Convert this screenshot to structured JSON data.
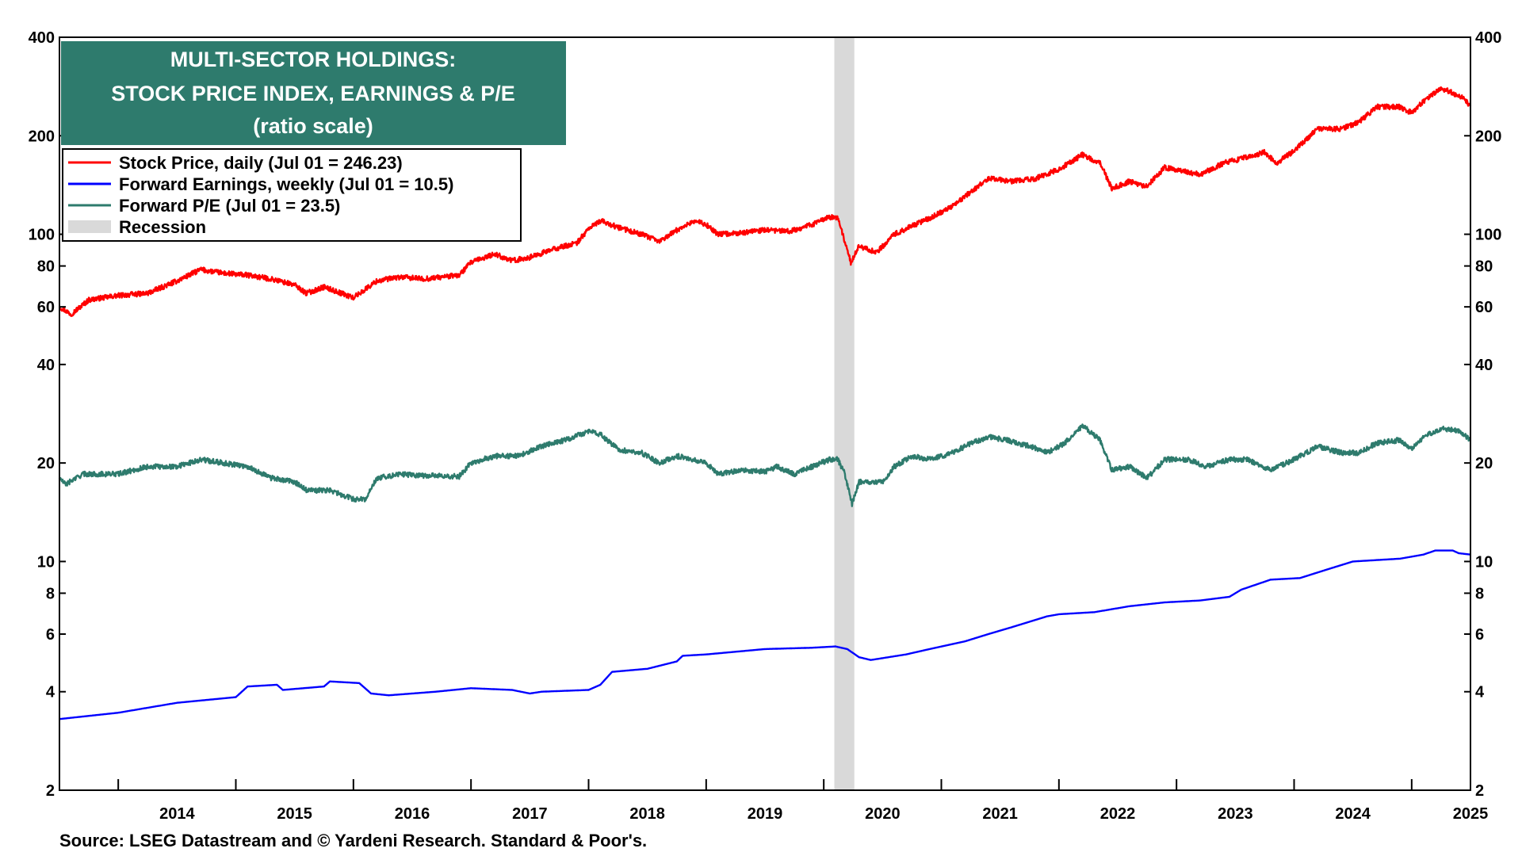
{
  "chart_data": {
    "type": "line",
    "title": [
      "MULTI-SECTOR HOLDINGS:",
      "STOCK PRICE INDEX, EARNINGS & P/E",
      "(ratio scale)"
    ],
    "y_scale": "log",
    "ylim": [
      2,
      400
    ],
    "y_ticks": [
      {
        "value": 2,
        "label": "2"
      },
      {
        "value": 4,
        "label": "4"
      },
      {
        "value": 6,
        "label": "6"
      },
      {
        "value": 8,
        "label": "8"
      },
      {
        "value": 10,
        "label": "10"
      },
      {
        "value": 20,
        "label": "20"
      },
      {
        "value": 40,
        "label": "40"
      },
      {
        "value": 60,
        "label": "60"
      },
      {
        "value": 80,
        "label": "80"
      },
      {
        "value": 100,
        "label": "100"
      },
      {
        "value": 200,
        "label": "200"
      },
      {
        "value": 400,
        "label": "400"
      }
    ],
    "x_range": [
      2013.5,
      2025.5
    ],
    "x_ticks": [
      "2014",
      "2015",
      "2016",
      "2017",
      "2018",
      "2019",
      "2020",
      "2021",
      "2022",
      "2023",
      "2024",
      "2025"
    ],
    "legend_position": "top-left",
    "recession": {
      "start": 2020.09,
      "end": 2020.26,
      "color": "#d9d9d9"
    },
    "series": [
      {
        "name": "Stock Price, daily (Jul 01 = 246.23)",
        "color": "#ff0000",
        "points": [
          [
            2013.5,
            60
          ],
          [
            2013.6,
            57
          ],
          [
            2013.75,
            63
          ],
          [
            2014.0,
            65
          ],
          [
            2014.25,
            66
          ],
          [
            2014.5,
            72
          ],
          [
            2014.7,
            78
          ],
          [
            2014.9,
            76
          ],
          [
            2015.1,
            75
          ],
          [
            2015.3,
            73
          ],
          [
            2015.5,
            70
          ],
          [
            2015.6,
            66
          ],
          [
            2015.75,
            69
          ],
          [
            2016.0,
            64
          ],
          [
            2016.2,
            72
          ],
          [
            2016.4,
            74
          ],
          [
            2016.6,
            73
          ],
          [
            2016.9,
            75
          ],
          [
            2017.0,
            82
          ],
          [
            2017.2,
            87
          ],
          [
            2017.35,
            83
          ],
          [
            2017.5,
            85
          ],
          [
            2017.7,
            90
          ],
          [
            2017.9,
            94
          ],
          [
            2018.0,
            104
          ],
          [
            2018.1,
            110
          ],
          [
            2018.25,
            105
          ],
          [
            2018.45,
            100
          ],
          [
            2018.6,
            95
          ],
          [
            2018.75,
            103
          ],
          [
            2018.9,
            110
          ],
          [
            2019.0,
            107
          ],
          [
            2019.1,
            100
          ],
          [
            2019.3,
            101
          ],
          [
            2019.5,
            103
          ],
          [
            2019.7,
            102
          ],
          [
            2019.9,
            107
          ],
          [
            2020.05,
            113
          ],
          [
            2020.12,
            112
          ],
          [
            2020.18,
            95
          ],
          [
            2020.23,
            82
          ],
          [
            2020.3,
            92
          ],
          [
            2020.45,
            88
          ],
          [
            2020.6,
            100
          ],
          [
            2020.75,
            106
          ],
          [
            2020.9,
            112
          ],
          [
            2021.1,
            122
          ],
          [
            2021.25,
            135
          ],
          [
            2021.4,
            148
          ],
          [
            2021.6,
            145
          ],
          [
            2021.8,
            148
          ],
          [
            2022.0,
            158
          ],
          [
            2022.2,
            175
          ],
          [
            2022.35,
            165
          ],
          [
            2022.45,
            138
          ],
          [
            2022.6,
            145
          ],
          [
            2022.75,
            140
          ],
          [
            2022.9,
            160
          ],
          [
            2023.1,
            155
          ],
          [
            2023.2,
            152
          ],
          [
            2023.4,
            165
          ],
          [
            2023.6,
            172
          ],
          [
            2023.75,
            178
          ],
          [
            2023.85,
            165
          ],
          [
            2024.0,
            180
          ],
          [
            2024.2,
            210
          ],
          [
            2024.4,
            210
          ],
          [
            2024.55,
            220
          ],
          [
            2024.7,
            245
          ],
          [
            2024.9,
            245
          ],
          [
            2025.0,
            235
          ],
          [
            2025.1,
            255
          ],
          [
            2025.25,
            280
          ],
          [
            2025.35,
            270
          ],
          [
            2025.45,
            260
          ],
          [
            2025.5,
            246
          ]
        ]
      },
      {
        "name": "Forward Earnings, weekly (Jul 01 = 10.5)",
        "color": "#0000ff",
        "points": [
          [
            2013.5,
            3.3
          ],
          [
            2014.0,
            3.45
          ],
          [
            2014.5,
            3.7
          ],
          [
            2015.0,
            3.85
          ],
          [
            2015.1,
            4.15
          ],
          [
            2015.35,
            4.2
          ],
          [
            2015.4,
            4.05
          ],
          [
            2015.75,
            4.15
          ],
          [
            2015.8,
            4.3
          ],
          [
            2016.05,
            4.25
          ],
          [
            2016.15,
            3.95
          ],
          [
            2016.3,
            3.9
          ],
          [
            2016.7,
            4.0
          ],
          [
            2017.0,
            4.1
          ],
          [
            2017.35,
            4.05
          ],
          [
            2017.5,
            3.95
          ],
          [
            2017.6,
            4.0
          ],
          [
            2018.0,
            4.05
          ],
          [
            2018.1,
            4.2
          ],
          [
            2018.2,
            4.6
          ],
          [
            2018.5,
            4.7
          ],
          [
            2018.75,
            4.95
          ],
          [
            2018.8,
            5.15
          ],
          [
            2019.0,
            5.2
          ],
          [
            2019.5,
            5.4
          ],
          [
            2019.9,
            5.45
          ],
          [
            2020.1,
            5.5
          ],
          [
            2020.2,
            5.4
          ],
          [
            2020.3,
            5.1
          ],
          [
            2020.4,
            5.0
          ],
          [
            2020.7,
            5.2
          ],
          [
            2020.9,
            5.4
          ],
          [
            2021.2,
            5.7
          ],
          [
            2021.4,
            6.0
          ],
          [
            2021.6,
            6.3
          ],
          [
            2021.9,
            6.8
          ],
          [
            2022.0,
            6.9
          ],
          [
            2022.3,
            7.0
          ],
          [
            2022.6,
            7.3
          ],
          [
            2022.9,
            7.5
          ],
          [
            2023.2,
            7.6
          ],
          [
            2023.45,
            7.8
          ],
          [
            2023.55,
            8.2
          ],
          [
            2023.8,
            8.8
          ],
          [
            2024.05,
            8.9
          ],
          [
            2024.3,
            9.5
          ],
          [
            2024.5,
            10.0
          ],
          [
            2024.9,
            10.2
          ],
          [
            2025.1,
            10.5
          ],
          [
            2025.2,
            10.8
          ],
          [
            2025.35,
            10.8
          ],
          [
            2025.4,
            10.6
          ],
          [
            2025.5,
            10.5
          ]
        ]
      },
      {
        "name": "Forward P/E (Jul 01 = 23.5)",
        "color": "#2e7b6d",
        "points": [
          [
            2013.5,
            18
          ],
          [
            2013.55,
            17.2
          ],
          [
            2013.7,
            18.5
          ],
          [
            2014.0,
            18.5
          ],
          [
            2014.25,
            19.5
          ],
          [
            2014.5,
            19.5
          ],
          [
            2014.7,
            20.5
          ],
          [
            2014.9,
            20
          ],
          [
            2015.1,
            19.5
          ],
          [
            2015.3,
            18
          ],
          [
            2015.5,
            17.5
          ],
          [
            2015.6,
            16.5
          ],
          [
            2015.8,
            16.5
          ],
          [
            2016.0,
            15.5
          ],
          [
            2016.1,
            15.5
          ],
          [
            2016.2,
            18
          ],
          [
            2016.4,
            18.5
          ],
          [
            2016.6,
            18.3
          ],
          [
            2016.9,
            18.2
          ],
          [
            2017.0,
            20
          ],
          [
            2017.2,
            21
          ],
          [
            2017.4,
            21
          ],
          [
            2017.6,
            22.5
          ],
          [
            2017.8,
            23.5
          ],
          [
            2018.0,
            25
          ],
          [
            2018.1,
            24.5
          ],
          [
            2018.25,
            22
          ],
          [
            2018.45,
            21.5
          ],
          [
            2018.6,
            20
          ],
          [
            2018.75,
            21
          ],
          [
            2018.9,
            20.5
          ],
          [
            2019.0,
            20
          ],
          [
            2019.1,
            18.5
          ],
          [
            2019.3,
            19
          ],
          [
            2019.5,
            18.8
          ],
          [
            2019.6,
            19.5
          ],
          [
            2019.75,
            18.5
          ],
          [
            2019.9,
            19.5
          ],
          [
            2020.05,
            20.5
          ],
          [
            2020.12,
            20.5
          ],
          [
            2020.18,
            18.5
          ],
          [
            2020.24,
            15
          ],
          [
            2020.3,
            17.5
          ],
          [
            2020.5,
            17.5
          ],
          [
            2020.6,
            19.5
          ],
          [
            2020.75,
            21
          ],
          [
            2020.9,
            20.5
          ],
          [
            2021.1,
            21.5
          ],
          [
            2021.25,
            23
          ],
          [
            2021.4,
            24
          ],
          [
            2021.55,
            23.5
          ],
          [
            2021.75,
            22.5
          ],
          [
            2021.9,
            21.5
          ],
          [
            2022.05,
            23
          ],
          [
            2022.2,
            26
          ],
          [
            2022.35,
            23.5
          ],
          [
            2022.45,
            19
          ],
          [
            2022.6,
            19.5
          ],
          [
            2022.75,
            18
          ],
          [
            2022.9,
            20.5
          ],
          [
            2023.1,
            20.5
          ],
          [
            2023.25,
            19.5
          ],
          [
            2023.45,
            20.5
          ],
          [
            2023.6,
            20.5
          ],
          [
            2023.8,
            19
          ],
          [
            2024.0,
            20.5
          ],
          [
            2024.2,
            22.5
          ],
          [
            2024.4,
            21.5
          ],
          [
            2024.55,
            21.5
          ],
          [
            2024.7,
            23
          ],
          [
            2024.9,
            23.5
          ],
          [
            2025.0,
            22
          ],
          [
            2025.1,
            24
          ],
          [
            2025.25,
            25.5
          ],
          [
            2025.4,
            25
          ],
          [
            2025.5,
            23.5
          ]
        ]
      }
    ],
    "legend": [
      {
        "label": "Stock Price, daily (Jul 01 = 246.23)",
        "color": "#ff0000",
        "kind": "line"
      },
      {
        "label": "Forward Earnings, weekly (Jul 01 = 10.5)",
        "color": "#0000ff",
        "kind": "line"
      },
      {
        "label": "Forward P/E (Jul 01 = 23.5)",
        "color": "#2e7b6d",
        "kind": "line"
      },
      {
        "label": "Recession",
        "color": "#d9d9d9",
        "kind": "box"
      }
    ],
    "source": "Source: LSEG Datastream and © Yardeni Research. Standard & Poor's."
  }
}
